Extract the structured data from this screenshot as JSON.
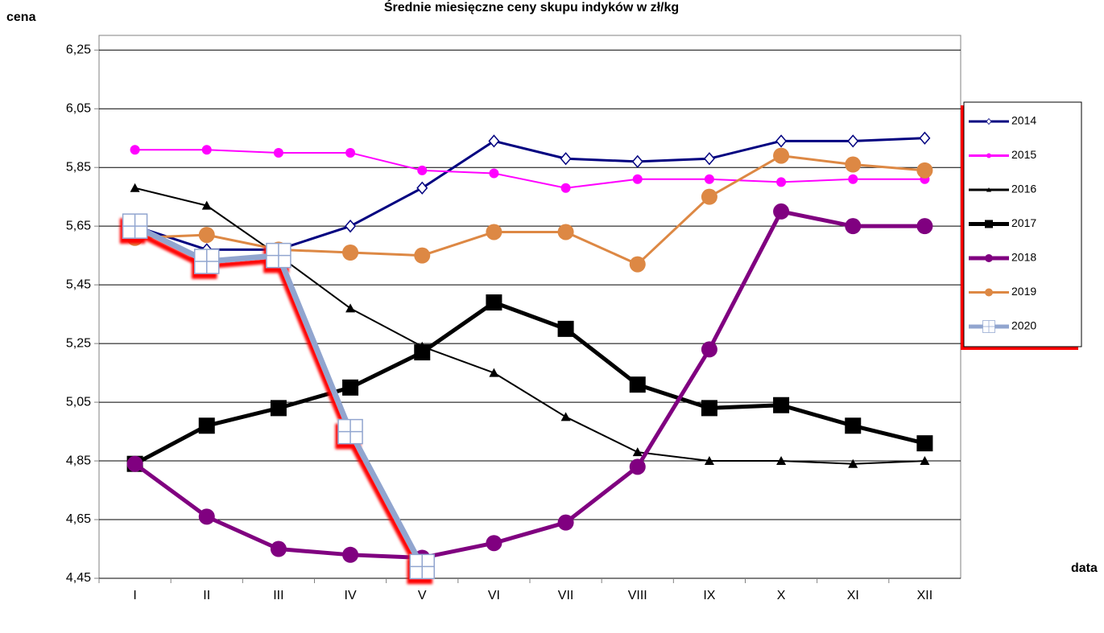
{
  "chart_data": {
    "type": "line",
    "title": "Średnie miesięczne ceny skupu indyków w zł/kg",
    "y_label": "cena",
    "x_label": "data",
    "categories": [
      "I",
      "II",
      "III",
      "IV",
      "V",
      "VI",
      "VII",
      "VIII",
      "IX",
      "X",
      "XI",
      "XII"
    ],
    "ylim": [
      4.45,
      6.3
    ],
    "yticks": [
      {
        "value": 4.45,
        "label": "4,45"
      },
      {
        "value": 4.65,
        "label": "4,65"
      },
      {
        "value": 4.85,
        "label": "4,85"
      },
      {
        "value": 5.05,
        "label": "5,05"
      },
      {
        "value": 5.25,
        "label": "5,25"
      },
      {
        "value": 5.45,
        "label": "5,45"
      },
      {
        "value": 5.65,
        "label": "5,65"
      },
      {
        "value": 5.85,
        "label": "5,85"
      },
      {
        "value": 6.05,
        "label": "6,05"
      },
      {
        "value": 6.25,
        "label": "6,25"
      }
    ],
    "grid": true,
    "series": [
      {
        "name": "2014",
        "color": "#000080",
        "marker": "diamond",
        "line_width": 3,
        "values": [
          5.65,
          5.57,
          5.57,
          5.65,
          5.78,
          5.94,
          5.88,
          5.87,
          5.88,
          5.94,
          5.94,
          5.95
        ]
      },
      {
        "name": "2015",
        "color": "#ff00ff",
        "marker": "circle",
        "line_width": 2,
        "values": [
          5.91,
          5.91,
          5.9,
          5.9,
          5.84,
          5.83,
          5.78,
          5.81,
          5.81,
          5.8,
          5.81,
          5.81
        ]
      },
      {
        "name": "2016",
        "color": "#000000",
        "marker": "triangle",
        "line_width": 2,
        "values": [
          5.78,
          5.72,
          5.55,
          5.37,
          5.24,
          5.15,
          5.0,
          4.88,
          4.85,
          4.85,
          4.84,
          4.85
        ]
      },
      {
        "name": "2017",
        "color": "#000000",
        "marker": "square",
        "line_width": 5,
        "values": [
          4.84,
          4.97,
          5.03,
          5.1,
          5.22,
          5.39,
          5.3,
          5.11,
          5.03,
          5.04,
          4.97,
          4.91
        ]
      },
      {
        "name": "2018",
        "color": "#800080",
        "marker": "bigcircle",
        "line_width": 5,
        "values": [
          4.84,
          4.66,
          4.55,
          4.53,
          4.52,
          4.57,
          4.64,
          4.83,
          5.23,
          5.7,
          5.65,
          5.65
        ]
      },
      {
        "name": "2019",
        "color": "#dd8844",
        "marker": "bigcircle",
        "line_width": 3,
        "values": [
          5.61,
          5.62,
          5.57,
          5.56,
          5.55,
          5.63,
          5.63,
          5.52,
          5.75,
          5.89,
          5.86,
          5.84
        ]
      },
      {
        "name": "2020",
        "color": "#91a5cf",
        "marker": "plusbox",
        "line_width": 7,
        "shadow": "#ff0000",
        "values": [
          5.65,
          5.53,
          5.55,
          4.95,
          4.49,
          null,
          null,
          null,
          null,
          null,
          null,
          null
        ]
      }
    ]
  }
}
